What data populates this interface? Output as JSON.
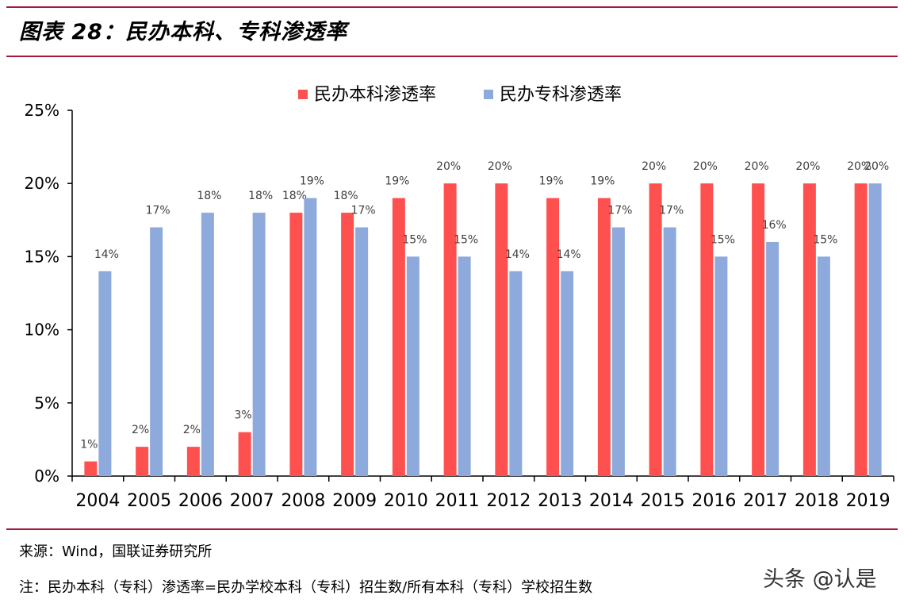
{
  "header": {
    "title": "图表 28：民办本科、专科渗透率"
  },
  "footer": {
    "source": "来源：Wind，国联证券研究所",
    "note": "注：民办本科（专科）渗透率=民办学校本科（专科）招生数/所有本科（专科）学校招生数",
    "watermark": "头条 @认是"
  },
  "chart_data": {
    "type": "bar",
    "categories": [
      "2004",
      "2005",
      "2006",
      "2007",
      "2008",
      "2009",
      "2010",
      "2011",
      "2012",
      "2013",
      "2014",
      "2015",
      "2016",
      "2017",
      "2018",
      "2019"
    ],
    "series": [
      {
        "name": "民办本科渗透率",
        "color": "#ff5050",
        "values": [
          1,
          2,
          2,
          3,
          18,
          18,
          19,
          20,
          20,
          19,
          19,
          20,
          20,
          20,
          20,
          20
        ]
      },
      {
        "name": "民办专科渗透率",
        "color": "#8eaadc",
        "values": [
          14,
          17,
          18,
          18,
          19,
          17,
          15,
          15,
          14,
          14,
          17,
          17,
          15,
          16,
          15,
          20
        ]
      }
    ],
    "ylim": [
      0,
      25
    ],
    "yticks": [
      0,
      5,
      10,
      15,
      20,
      25
    ],
    "unit": "%",
    "legend": "top-center",
    "grid": false
  }
}
